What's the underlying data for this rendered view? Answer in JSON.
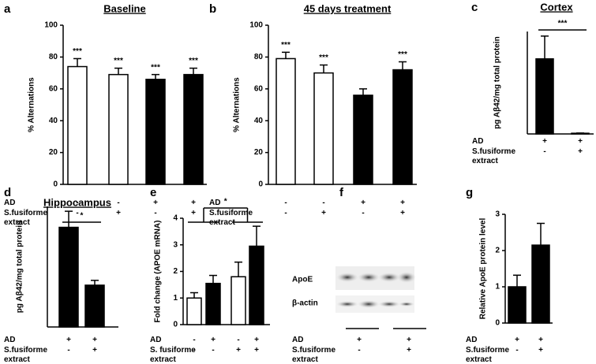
{
  "chart_data": [
    {
      "type": "bar",
      "panel_label": "a",
      "title": "Baseline",
      "y_label": "% Alternations",
      "values": [
        74,
        69,
        66,
        69
      ],
      "errors": [
        5,
        4,
        3,
        4
      ],
      "colors": [
        "#ffffff",
        "#ffffff",
        "#000000",
        "#000000"
      ],
      "annotations": [
        "***",
        "***",
        "***",
        "***"
      ],
      "ylim": [
        0,
        100
      ],
      "yticks": [
        0,
        20,
        40,
        60,
        80,
        100
      ],
      "conditions": [
        {
          "name": "AD",
          "values": [
            "-",
            "-",
            "+",
            "+"
          ]
        },
        {
          "name": "S.fusiforme extract",
          "values": [
            "-",
            "+",
            "-",
            "+"
          ]
        }
      ]
    },
    {
      "type": "bar",
      "panel_label": "b",
      "title": "45 days treatment",
      "y_label": "% Alternations",
      "values": [
        79,
        70,
        56,
        72
      ],
      "errors": [
        4,
        5,
        4,
        5
      ],
      "colors": [
        "#ffffff",
        "#ffffff",
        "#000000",
        "#000000"
      ],
      "annotations": [
        "***",
        "***",
        null,
        "***"
      ],
      "ylim": [
        0,
        100
      ],
      "yticks": [
        0,
        20,
        40,
        60,
        80,
        100
      ],
      "conditions": [
        {
          "name": "AD",
          "values": [
            "-",
            "-",
            "+",
            "+"
          ]
        },
        {
          "name": "S.fusiforme extract",
          "values": [
            "-",
            "+",
            "-",
            "+"
          ]
        }
      ]
    },
    {
      "type": "bar",
      "panel_label": "c",
      "title": "Cortex",
      "y_label": "pg Aβ42/mg total protein",
      "values": [
        330,
        3
      ],
      "errors": [
        100,
        1
      ],
      "colors": [
        "#000000",
        "#000000"
      ],
      "bracket": "***",
      "ylim": [
        0,
        450
      ],
      "conditions": [
        {
          "name": "AD",
          "values": [
            "+",
            "+"
          ]
        },
        {
          "name": "S.fusiforme extract",
          "values": [
            "-",
            "+"
          ]
        }
      ]
    },
    {
      "type": "bar",
      "panel_label": "d",
      "title": "Hippocampus",
      "y_label": "pg Aβ42/mg total protein",
      "values": [
        62,
        26
      ],
      "errors": [
        10,
        3
      ],
      "colors": [
        "#000000",
        "#000000"
      ],
      "bracket": "*",
      "ylim": [
        0,
        75
      ],
      "conditions": [
        {
          "name": "AD",
          "values": [
            "+",
            "+"
          ]
        },
        {
          "name": "S.fusiforme extract",
          "values": [
            "-",
            "+"
          ]
        }
      ]
    },
    {
      "type": "bar",
      "panel_label": "e",
      "y_label": "Fold change (APOE mRNA)",
      "values": [
        1.0,
        1.55,
        1.8,
        2.95
      ],
      "errors": [
        0.2,
        0.3,
        0.55,
        0.75
      ],
      "colors": [
        "#ffffff",
        "#000000",
        "#ffffff",
        "#000000"
      ],
      "group_bracket": "*",
      "ylim": [
        0,
        4
      ],
      "yticks": [
        0,
        1,
        2,
        3,
        4
      ],
      "conditions": [
        {
          "name": "AD",
          "values": [
            "-",
            "+",
            "-",
            "+"
          ]
        },
        {
          "name": "S. fusiforme extract",
          "values": [
            "-",
            "-",
            "+",
            "+"
          ]
        }
      ]
    },
    {
      "type": "blot",
      "panel_label": "f",
      "bands": [
        "ApoE",
        "β-actin"
      ],
      "conditions": [
        {
          "name": "AD",
          "values": [
            "+",
            "+"
          ]
        },
        {
          "name": "S.fusiforme extract",
          "values": [
            "-",
            "+"
          ]
        }
      ]
    },
    {
      "type": "bar",
      "panel_label": "g",
      "y_label": "Relative ApoE protein level",
      "values": [
        1.0,
        2.15
      ],
      "errors": [
        0.32,
        0.6
      ],
      "colors": [
        "#000000",
        "#000000"
      ],
      "ylim": [
        0,
        3
      ],
      "yticks": [
        0,
        1,
        2,
        3
      ],
      "conditions": [
        {
          "name": "AD",
          "values": [
            "+",
            "+"
          ]
        },
        {
          "name": "S.fusiforme extract",
          "values": [
            "-",
            "+"
          ]
        }
      ]
    }
  ]
}
